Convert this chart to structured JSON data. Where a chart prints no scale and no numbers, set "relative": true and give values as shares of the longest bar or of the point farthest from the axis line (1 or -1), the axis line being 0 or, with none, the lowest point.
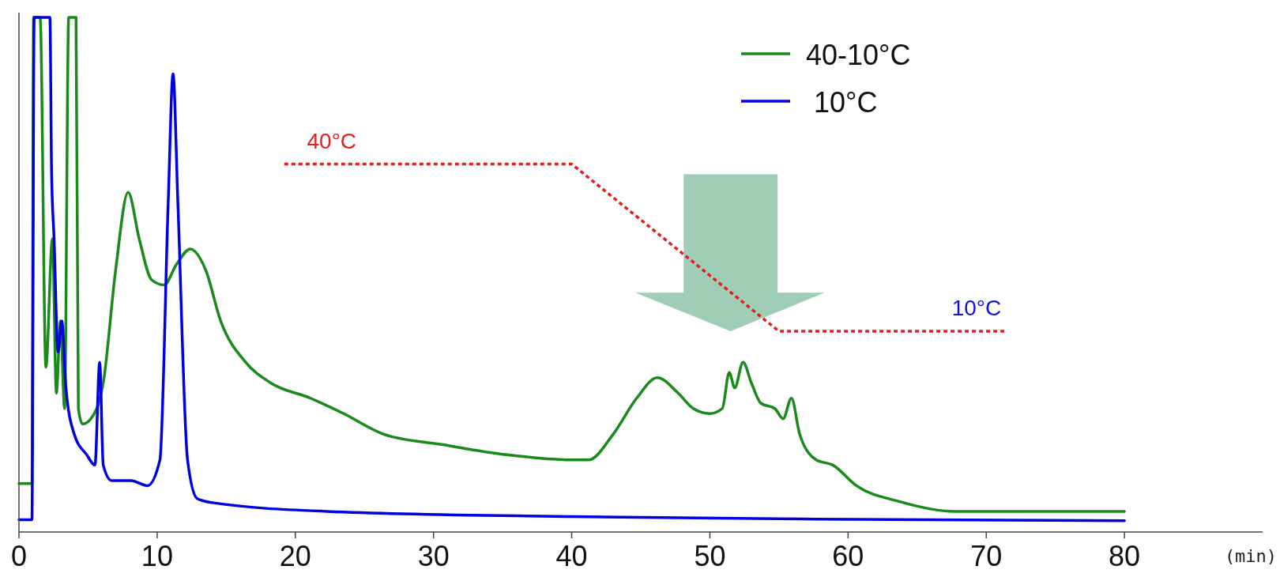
{
  "chart_data": {
    "type": "line",
    "relative": true,
    "xlabel": "(min)",
    "xlim": [
      0,
      90
    ],
    "xticks": [
      0,
      10,
      20,
      30,
      40,
      50,
      60,
      70,
      80
    ],
    "legend": "top right",
    "annotations": [
      "40°C",
      "10°C"
    ],
    "series": [
      {
        "name": "40-10°C",
        "color": "#1a8a1a",
        "x": [
          0,
          0.94,
          1.06,
          1.53,
          1.95,
          2.42,
          2.71,
          3.0,
          3.3,
          3.6,
          4.13,
          4.3,
          4.6,
          5.2,
          6.1,
          7.0,
          7.9,
          8.7,
          9.6,
          10.5,
          11.4,
          12.4,
          13.5,
          14.6,
          16.4,
          18.2,
          21.1,
          23.5,
          26.4,
          30.6,
          35.3,
          40.0,
          41.2,
          43.0,
          44.7,
          46.2,
          47.7,
          48.8,
          50.0,
          50.9,
          51.4,
          51.8,
          52.4,
          53.0,
          53.7,
          54.7,
          55.3,
          55.9,
          56.5,
          57.7,
          58.9,
          60.6,
          63.6,
          67.7,
          72.4,
          80
        ],
        "values": [
          0.094,
          0.094,
          1,
          1,
          0.32,
          0.57,
          0.27,
          0.41,
          0.24,
          1,
          1,
          0.24,
          0.21,
          0.22,
          0.29,
          0.51,
          0.66,
          0.57,
          0.49,
          0.48,
          0.52,
          0.55,
          0.51,
          0.41,
          0.33,
          0.29,
          0.26,
          0.23,
          0.19,
          0.17,
          0.15,
          0.14,
          0.14,
          0.19,
          0.26,
          0.3,
          0.27,
          0.24,
          0.23,
          0.24,
          0.31,
          0.28,
          0.33,
          0.29,
          0.25,
          0.24,
          0.22,
          0.26,
          0.19,
          0.14,
          0.13,
          0.09,
          0.06,
          0.04,
          0.04,
          0.04
        ]
      },
      {
        "name": " 10°C",
        "color": "#0000e0",
        "x": [
          0,
          0.94,
          1.1,
          2.24,
          2.36,
          2.54,
          2.83,
          3.1,
          3.4,
          4.0,
          4.9,
          5.5,
          5.84,
          6.1,
          6.7,
          8.1,
          9.3,
          10.2,
          10.8,
          11.15,
          11.5,
          12.2,
          12.9,
          14.0,
          22.3,
          40,
          57.7,
          80
        ],
        "values": [
          0.024,
          0.024,
          1,
          1,
          0.7,
          0.57,
          0.35,
          0.41,
          0.28,
          0.19,
          0.15,
          0.13,
          0.33,
          0.13,
          0.1,
          0.1,
          0.09,
          0.14,
          0.64,
          0.89,
          0.64,
          0.14,
          0.065,
          0.057,
          0.04,
          0.03,
          0.025,
          0.022
        ]
      },
      {
        "color": "#e02020",
        "line_style": "dotted",
        "x": [
          19.2,
          40,
          55,
          71.3
        ],
        "values": [
          0.715,
          0.715,
          0.39,
          0.39
        ]
      }
    ]
  }
}
